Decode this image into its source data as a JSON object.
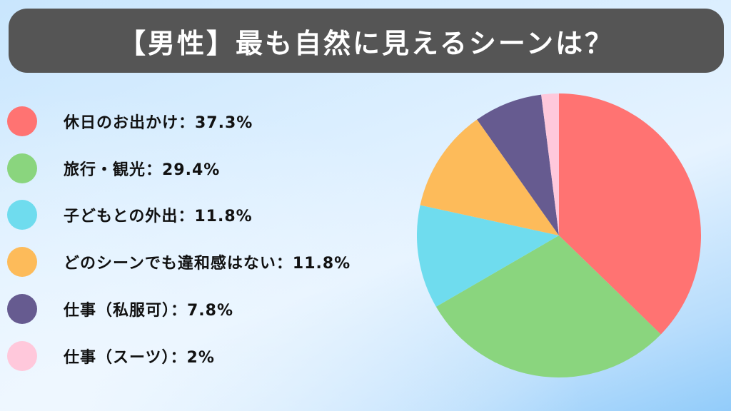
{
  "title": "【男性】最も自然に見えるシーンは？",
  "legend": [
    {
      "label": "休日のお出かけ：37.3%",
      "color": "#ff7372"
    },
    {
      "label": "旅行・観光：29.4%",
      "color": "#8ad57e"
    },
    {
      "label": "子どもとの外出：11.8%",
      "color": "#6fdcee"
    },
    {
      "label": "どのシーンでも違和感はない：11.8%",
      "color": "#fdbb5a"
    },
    {
      "label": "仕事（私服可）：7.8%",
      "color": "#665b90"
    },
    {
      "label": "仕事（スーツ）：2%",
      "color": "#ffc8db"
    }
  ],
  "chart_data": {
    "type": "pie",
    "title": "【男性】最も自然に見えるシーンは？",
    "categories": [
      "休日のお出かけ",
      "旅行・観光",
      "子どもとの外出",
      "どのシーンでも違和感はない",
      "仕事（私服可）",
      "仕事（スーツ）"
    ],
    "values": [
      37.3,
      29.4,
      11.8,
      11.8,
      7.8,
      2
    ],
    "colors": [
      "#ff7372",
      "#8ad57e",
      "#6fdcee",
      "#fdbb5a",
      "#665b90",
      "#ffc8db"
    ],
    "unit": "%",
    "start_angle": "12 o'clock",
    "direction": "clockwise",
    "legend_position": "left"
  }
}
